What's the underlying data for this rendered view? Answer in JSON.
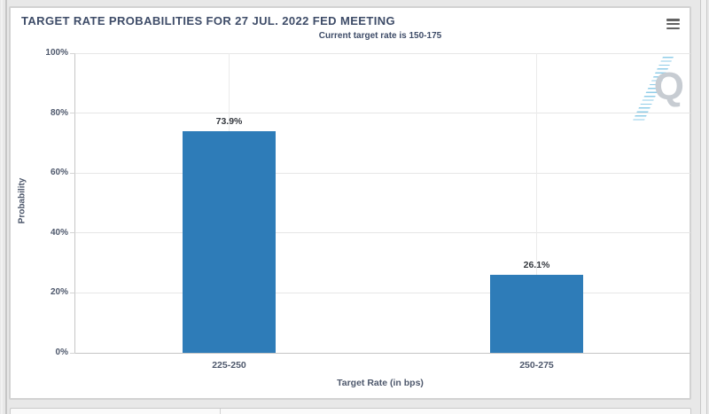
{
  "header": {
    "title": "TARGET RATE PROBABILITIES FOR 27 JUL. 2022 FED MEETING",
    "menu_icon": "hamburger-context-menu"
  },
  "watermark": {
    "letter": "Q"
  },
  "chart_data": {
    "type": "bar",
    "title": "TARGET RATE PROBABILITIES FOR 27 JUL. 2022 FED MEETING",
    "subtitle": "Current target rate is 150-175",
    "categories": [
      "225-250",
      "250-275"
    ],
    "values": [
      73.9,
      26.1
    ],
    "data_labels": [
      "73.9%",
      "26.1%"
    ],
    "xlabel": "Target Rate (in bps)",
    "ylabel": "Probability",
    "ylim": [
      0,
      100
    ],
    "ytick_step": 20,
    "ytick_labels": [
      "0%",
      "20%",
      "40%",
      "60%",
      "80%",
      "100%"
    ],
    "grid": true,
    "legend": "none"
  },
  "colors": {
    "bar": "#2E7CB8",
    "title_text": "#3E4C68",
    "axis_text": "#4E586C",
    "grid_line": "#E6E6E6",
    "panel_border": "#D2D2D2",
    "page_bg": "#E8E8E8"
  }
}
